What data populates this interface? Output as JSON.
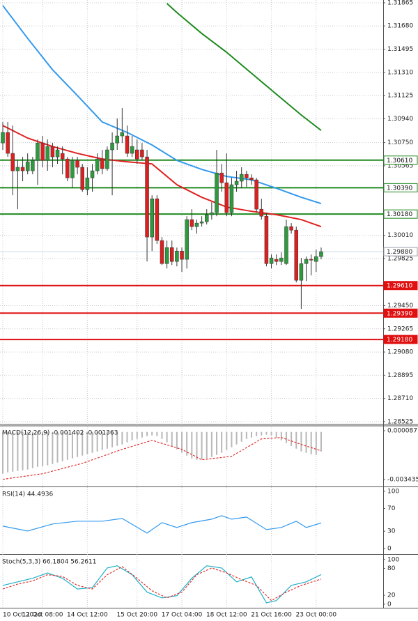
{
  "chart_data": [
    {
      "type": "candlestick",
      "ylim": [
        1.28508,
        1.31887
      ],
      "yticks": [
        1.31865,
        {
          "value": 1.3168,
          "label": "1.31680"
        },
        1.31495,
        {
          "value": 1.3131,
          "label": "1.31310"
        },
        1.31125,
        {
          "value": 1.3094,
          "label": "1.30940"
        },
        {
          "value": 1.3075,
          "label": "1.30750"
        },
        1.30565,
        {
          "value": 1.3001,
          "label": "1.30010"
        },
        1.29825,
        {
          "value": 1.2945,
          "label": "1.29450"
        },
        1.29265,
        {
          "value": 1.2908,
          "label": "1.29080"
        },
        1.28895,
        {
          "value": 1.2871,
          "label": "1.28710"
        },
        1.28525
      ],
      "xticks": [
        {
          "value": 0,
          "label": "10 Oct 2024"
        },
        {
          "value": 8,
          "label": "11 Oct 08:00"
        },
        {
          "value": 17,
          "label": "14 Oct 12:00"
        },
        {
          "value": 27,
          "label": "15 Oct 20:00"
        },
        {
          "value": 36,
          "label": "17 Oct 04:00"
        },
        {
          "value": 45,
          "label": "18 Oct 12:00"
        },
        {
          "value": 54,
          "label": "21 Oct 16:00"
        },
        {
          "value": 63,
          "label": "23 Oct 00:00"
        }
      ],
      "grid": true,
      "up_color": "#2e9a3e",
      "down_color": "#dd1f1f",
      "open": [
        1.30747,
        1.30831,
        1.30664,
        1.30525,
        1.30553,
        1.30525,
        1.30525,
        1.30608,
        1.30747,
        1.30608,
        1.30719,
        1.30636,
        1.30664,
        1.30619,
        1.30469,
        1.30608,
        1.30553,
        1.30375,
        1.30469,
        1.30525,
        1.30619,
        1.30542,
        1.30692,
        1.30747,
        1.30803,
        1.30803,
        1.30664,
        1.30692,
        1.30692,
        1.30636,
        1.29997,
        1.30302,
        1.29969,
        1.29785,
        1.29913,
        1.29802,
        1.29885,
        1.29819,
        1.30136,
        1.3008,
        1.30108,
        1.30119,
        1.30175,
        1.30191,
        1.30508,
        1.3043,
        1.30191,
        1.30414,
        1.30442,
        1.30497,
        1.30469,
        1.30453,
        1.30219,
        1.30163,
        1.29785,
        1.29819,
        1.29802,
        1.29785,
        1.3008,
        1.30052,
        1.29652,
        1.29785,
        1.29819,
        1.29802,
        1.29841
      ],
      "high": [
        1.30914,
        1.30914,
        1.30886,
        1.30608,
        1.30636,
        1.30664,
        1.30636,
        1.30775,
        1.30803,
        1.30775,
        1.30747,
        1.30719,
        1.30719,
        1.30636,
        1.30636,
        1.30636,
        1.3058,
        1.30553,
        1.3058,
        1.30664,
        1.30692,
        1.30719,
        1.30831,
        1.30942,
        1.31025,
        1.30886,
        1.30803,
        1.30775,
        1.30747,
        1.30692,
        1.3033,
        1.3033,
        1.29997,
        1.29969,
        1.29969,
        1.29913,
        1.29913,
        1.30163,
        1.30219,
        1.30136,
        1.30163,
        1.30219,
        1.30275,
        1.30692,
        1.3058,
        1.30664,
        1.30469,
        1.30525,
        1.30553,
        1.30525,
        1.30497,
        1.30469,
        1.30302,
        1.30191,
        1.29858,
        1.29858,
        1.29874,
        1.30136,
        1.30108,
        1.3008,
        1.2983,
        1.29841,
        1.29858,
        1.29897,
        1.29913
      ],
      "low": [
        1.30692,
        1.30636,
        1.3033,
        1.30219,
        1.30442,
        1.30497,
        1.30497,
        1.30414,
        1.30553,
        1.30525,
        1.30553,
        1.3058,
        1.30497,
        1.30442,
        1.30386,
        1.30497,
        1.30358,
        1.3033,
        1.30358,
        1.30497,
        1.30497,
        1.30525,
        1.3033,
        1.30692,
        1.30747,
        1.30636,
        1.30636,
        1.3058,
        1.30608,
        1.29802,
        1.29885,
        1.29941,
        1.29774,
        1.29746,
        1.29774,
        1.29763,
        1.29719,
        1.29746,
        1.30052,
        1.30024,
        1.3008,
        1.30097,
        1.30136,
        1.30163,
        1.30358,
        1.30163,
        1.30163,
        1.30358,
        1.30386,
        1.30397,
        1.30414,
        1.30191,
        1.30136,
        1.29763,
        1.29746,
        1.29774,
        1.29774,
        1.29774,
        1.30024,
        1.29635,
        1.29424,
        1.29646,
        1.29691,
        1.29719,
        1.29819
      ],
      "close": [
        1.30831,
        1.30664,
        1.30525,
        1.30553,
        1.30525,
        1.30597,
        1.30608,
        1.30747,
        1.30608,
        1.30719,
        1.30636,
        1.30692,
        1.30619,
        1.30469,
        1.30608,
        1.30553,
        1.30375,
        1.30469,
        1.30525,
        1.30619,
        1.30542,
        1.30692,
        1.30747,
        1.30803,
        1.30831,
        1.30664,
        1.30719,
        1.30619,
        1.30636,
        1.29997,
        1.30302,
        1.29969,
        1.29785,
        1.29913,
        1.29802,
        1.29885,
        1.29819,
        1.30136,
        1.3008,
        1.30108,
        1.30119,
        1.30175,
        1.30191,
        1.30508,
        1.3043,
        1.30191,
        1.30414,
        1.30442,
        1.30497,
        1.30469,
        1.30453,
        1.30219,
        1.30163,
        1.29785,
        1.2983,
        1.29802,
        1.2983,
        1.3008,
        1.30052,
        1.29652,
        1.29785,
        1.29819,
        1.29813,
        1.29841,
        1.2988
      ],
      "series": [
        {
          "color": "#3399ee",
          "x": [
            0,
            5,
            10,
            15,
            20,
            25,
            30,
            35,
            40,
            45,
            50,
            55,
            60,
            64
          ],
          "values": [
            1.31843,
            1.31581,
            1.31331,
            1.31125,
            1.30914,
            1.30831,
            1.30731,
            1.30608,
            1.30536,
            1.3048,
            1.30453,
            1.30386,
            1.30314,
            1.30264
          ]
        },
        {
          "color": "#e02020",
          "x": [
            0,
            5,
            10,
            15,
            20,
            25,
            30,
            35,
            40,
            45,
            50,
            55,
            60,
            64
          ],
          "values": [
            1.30886,
            1.30786,
            1.30719,
            1.30664,
            1.30619,
            1.30597,
            1.3058,
            1.30414,
            1.30314,
            1.30236,
            1.30202,
            1.30175,
            1.30136,
            1.3008
          ]
        },
        {
          "color": "#1e8a1e",
          "x": [
            33,
            35,
            40,
            45,
            50,
            55,
            60,
            64
          ],
          "values": [
            1.31859,
            1.31787,
            1.3162,
            1.3147,
            1.31303,
            1.31136,
            1.3097,
            1.30847
          ]
        }
      ],
      "levels": [
        {
          "value": 1.3061,
          "label": "1.30610",
          "color": "#1e8a1e"
        },
        {
          "value": 1.3039,
          "label": "1.30390",
          "color": "#1e8a1e"
        },
        {
          "value": 1.3018,
          "label": "1.30180",
          "color": "#1e8a1e"
        },
        {
          "value": 1.2961,
          "label": "1.29610",
          "color": "#e01010"
        },
        {
          "value": 1.2939,
          "label": "1.29390",
          "color": "#e01010"
        },
        {
          "value": 1.2918,
          "label": "1.29180",
          "color": "#e01010"
        }
      ],
      "current": {
        "value": 1.2988,
        "label": "1.29880",
        "color": "#9aa0aa"
      }
    },
    {
      "type": "macd",
      "title": "MACD(12,26,9) -0.001402 -0.001363",
      "ylim": [
        -0.003938,
        0.000389
      ],
      "yticks": [
        8.7e-05,
        -0.003435
      ],
      "histogram": {
        "color": "#b8b8b8",
        "values": [
          -0.003018,
          -0.002917,
          -0.002867,
          -0.002817,
          -0.002767,
          -0.002716,
          -0.002616,
          -0.002515,
          -0.002465,
          -0.002414,
          -0.002314,
          -0.002213,
          -0.002113,
          -0.002012,
          -0.001911,
          -0.001811,
          -0.00171,
          -0.00161,
          -0.001509,
          -0.001408,
          -0.001308,
          -0.001207,
          -0.001107,
          -0.001006,
          -0.000905,
          -0.000755,
          -0.000604,
          -0.000503,
          -0.000402,
          -0.000302,
          -0.000252,
          -0.000302,
          -0.000503,
          -0.000755,
          -0.001006,
          -0.001258,
          -0.001509,
          -0.00171,
          -0.001911,
          -0.002012,
          -0.002012,
          -0.001911,
          -0.001811,
          -0.00166,
          -0.001509,
          -0.001308,
          -0.001107,
          -0.000905,
          -0.000704,
          -0.000503,
          -0.000402,
          -0.000302,
          -0.000252,
          -0.000201,
          -0.000252,
          -0.000402,
          -0.000604,
          -0.000805,
          -0.001006,
          -0.001207,
          -0.001408,
          -0.001509,
          -0.00161,
          -0.00166,
          -0.001402
        ]
      },
      "series": [
        {
          "color": "#e03030",
          "dash": true,
          "x": [
            0,
            8,
            16,
            24,
            30,
            36,
            40,
            46,
            52,
            56,
            60,
            64
          ],
          "values": [
            -0.00342,
            -0.003018,
            -0.002264,
            -0.001258,
            -0.000604,
            -0.001258,
            -0.002012,
            -0.001761,
            -0.000503,
            -0.000402,
            -0.000905,
            -0.001363
          ]
        }
      ]
    },
    {
      "type": "line",
      "title": "RSI(14) 44.4936",
      "ylim": [
        -10,
        106
      ],
      "yticks": [
        100,
        70,
        30,
        0
      ],
      "series": [
        {
          "color": "#3399ee",
          "x": [
            0,
            5,
            10,
            15,
            20,
            24,
            29,
            32,
            35,
            38,
            42,
            44,
            46,
            49,
            53,
            56,
            59,
            61,
            64
          ],
          "values": [
            39,
            30.5,
            42.7,
            47.6,
            47.6,
            52.4,
            26.8,
            45.1,
            36.6,
            45.1,
            51.2,
            57.3,
            51.2,
            54.9,
            32.9,
            36.6,
            47.6,
            36.6,
            44.4936
          ]
        }
      ]
    },
    {
      "type": "line",
      "title": "Stoch(5,3,3) 66.1804 56.2611",
      "ylim": [
        -8,
        109
      ],
      "yticks": [
        100,
        80,
        20,
        0
      ],
      "series": [
        {
          "color": "#20b0c8",
          "x": [
            0,
            3,
            6,
            9,
            12,
            15,
            18,
            21,
            23,
            26,
            29,
            32,
            35,
            38,
            41,
            44,
            47,
            50,
            53,
            55,
            58,
            61,
            64
          ],
          "values": [
            42,
            50,
            58,
            70,
            58,
            34,
            37,
            81,
            86,
            66,
            27,
            14,
            19,
            58,
            86,
            81,
            50,
            61,
            3,
            8,
            42,
            50,
            66.1804
          ]
        },
        {
          "color": "#e03030",
          "dash": true,
          "x": [
            0,
            3,
            6,
            9,
            12,
            15,
            18,
            21,
            24,
            27,
            30,
            33,
            36,
            39,
            42,
            45,
            48,
            51,
            54,
            57,
            60,
            64
          ],
          "values": [
            34,
            45,
            52,
            66,
            62,
            42,
            34,
            66,
            84,
            58,
            30,
            14,
            27,
            66,
            81,
            70,
            55,
            42,
            8,
            27,
            42,
            56.2611
          ]
        }
      ]
    }
  ]
}
